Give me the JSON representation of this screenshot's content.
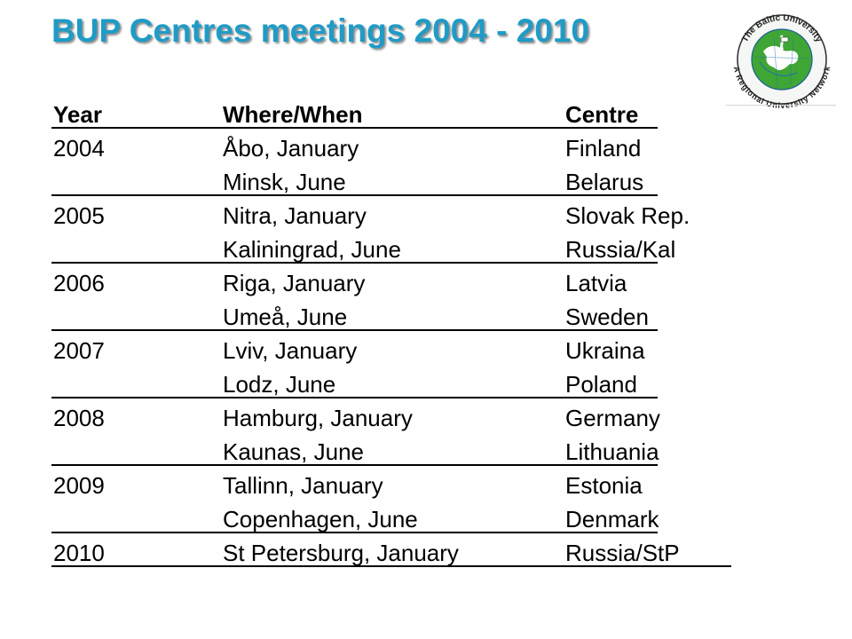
{
  "title": "BUP Centres meetings 2004 - 2010",
  "logo": {
    "top_text": "The Baltic University",
    "bottom_text": "A Regional University Network",
    "colors": {
      "ring": "#2b2b2b",
      "land": "#3fa535",
      "sea": "#ffffff",
      "map_lines": "#1f6fb5"
    }
  },
  "colors": {
    "title": "#1f9bc6"
  },
  "table": {
    "headers": {
      "year": "Year",
      "where": "Where/When",
      "centre": "Centre"
    },
    "rows": [
      {
        "year": "2004",
        "where": "Åbo, January",
        "centre": "Finland"
      },
      {
        "year": "",
        "where": "Minsk, June",
        "centre": "Belarus"
      },
      {
        "year": "2005",
        "where": "Nitra, January",
        "centre": "Slovak Rep."
      },
      {
        "year": "",
        "where": "Kaliningrad, June",
        "centre": "Russia/Kal"
      },
      {
        "year": "2006",
        "where": "Riga, January",
        "centre": "Latvia"
      },
      {
        "year": "",
        "where": "Umeå, June",
        "centre": "Sweden"
      },
      {
        "year": "2007",
        "where": "Lviv, January",
        "centre": "Ukraina"
      },
      {
        "year": "",
        "where": "Lodz, June",
        "centre": "Poland"
      },
      {
        "year": "2008",
        "where": "Hamburg, January",
        "centre": "Germany"
      },
      {
        "year": "",
        "where": "Kaunas, June",
        "centre": "Lithuania"
      },
      {
        "year": "2009",
        "where": "Tallinn, January",
        "centre": "Estonia"
      },
      {
        "year": "",
        "where": "Copenhagen, June",
        "centre": "Denmark"
      },
      {
        "year": "2010",
        "where": "St Petersburg, January",
        "centre": "Russia/StP"
      }
    ]
  }
}
